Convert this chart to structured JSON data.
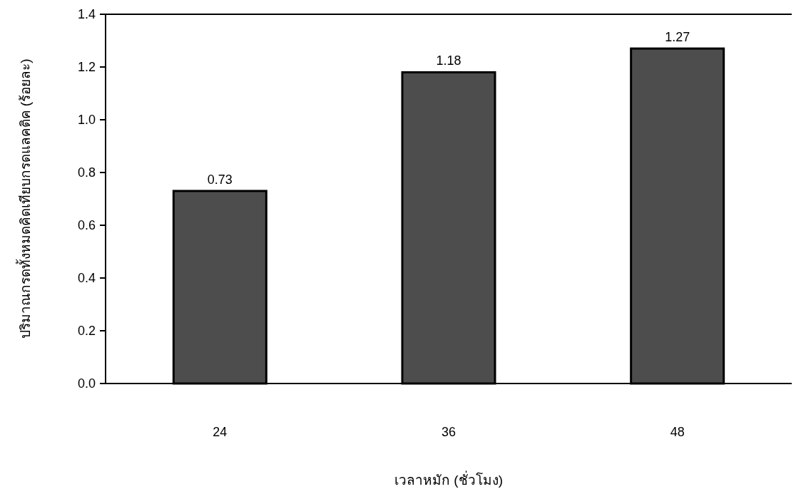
{
  "chart_data": {
    "type": "bar",
    "xlabel": "เวลาหมัก (ชั่วโมง)",
    "ylabel": "ปริมาณกรดทั้งหมดคิดเทียบกรดแลคติค (ร้อยละ)",
    "categories": [
      "24",
      "36",
      "48"
    ],
    "values": [
      0.73,
      1.18,
      1.27
    ],
    "color": "#4d4d4d",
    "ylim": [
      0,
      1.4
    ],
    "yticks": [
      {
        "value": 0,
        "label": "0.0"
      },
      0.2,
      0.4,
      0.6,
      0.8,
      {
        "value": 1,
        "label": "1.0"
      },
      1.2,
      1.4
    ],
    "data_labels": true
  }
}
